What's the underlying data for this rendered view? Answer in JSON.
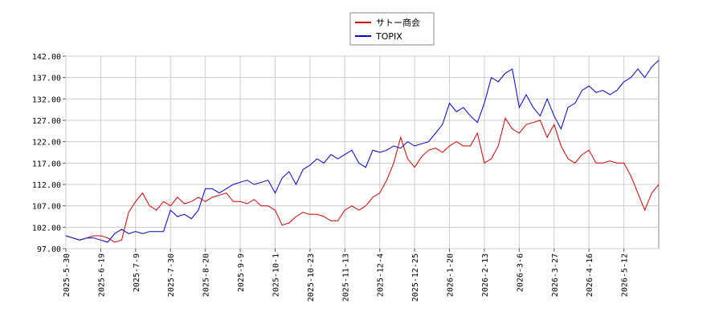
{
  "chart_data": {
    "type": "line",
    "x": [
      "2025-5-30",
      null,
      null,
      null,
      null,
      "2025-6-19",
      null,
      null,
      null,
      null,
      "2025-7-9",
      null,
      null,
      null,
      null,
      "2025-7-30",
      null,
      null,
      null,
      null,
      "2025-8-20",
      null,
      null,
      null,
      null,
      "2025-9-9",
      null,
      null,
      null,
      null,
      "2025-10-1",
      null,
      null,
      null,
      null,
      "2025-10-23",
      null,
      null,
      null,
      null,
      "2025-11-13",
      null,
      null,
      null,
      null,
      "2025-12-4",
      null,
      null,
      null,
      null,
      "2025-12-25",
      null,
      null,
      null,
      null,
      "2026-1-20",
      null,
      null,
      null,
      null,
      "2026-2-13",
      null,
      null,
      null,
      null,
      "2026-3-6",
      null,
      null,
      null,
      null,
      "2026-3-27",
      null,
      null,
      null,
      null,
      "2026-4-16",
      null,
      null,
      null,
      null,
      "2026-5-12",
      null,
      null,
      null,
      null,
      null
    ],
    "series": [
      {
        "name": "サトー商会",
        "color": "#cc0000",
        "values": [
          100,
          99.5,
          99,
          99.5,
          100,
          100,
          99.5,
          98.5,
          99,
          105.5,
          108,
          110,
          107,
          106,
          108,
          107,
          109,
          107.5,
          108,
          109,
          108,
          109,
          109.5,
          110,
          108,
          108,
          107.5,
          108.5,
          107,
          107,
          106,
          102.5,
          103,
          104.5,
          105.5,
          105,
          105,
          104.5,
          103.5,
          103.5,
          106,
          107,
          106,
          107,
          109,
          110,
          113,
          117,
          123,
          118,
          116,
          118.5,
          120,
          120.5,
          119.5,
          121,
          122,
          121,
          121,
          124,
          117,
          118,
          121,
          127.5,
          125,
          124,
          126,
          126.5,
          127,
          123,
          126,
          121,
          118,
          117,
          119,
          120,
          117,
          117,
          117.5,
          117,
          117,
          114,
          110,
          106,
          110,
          112
        ]
      },
      {
        "name": "TOPIX",
        "color": "#0000cc",
        "values": [
          100,
          99.5,
          99,
          99.5,
          99.5,
          99,
          98.5,
          100.5,
          101.5,
          100.5,
          101,
          100.5,
          101,
          101,
          101,
          106,
          104.5,
          105,
          104,
          106,
          111,
          111,
          110,
          111,
          112,
          112.5,
          113,
          112,
          112.5,
          113,
          110,
          113.5,
          115,
          112,
          115.5,
          116.5,
          118,
          117,
          119,
          118,
          119,
          120,
          117,
          116,
          120,
          119.5,
          120,
          121,
          120.5,
          122,
          121,
          121.5,
          122,
          124,
          126,
          131,
          129,
          130,
          128,
          126.5,
          131,
          137,
          136,
          138,
          139,
          130,
          133,
          130,
          128,
          132,
          128,
          125,
          130,
          131,
          134,
          135,
          133.5,
          134,
          133,
          134,
          136,
          137,
          139,
          137,
          139.5,
          141
        ]
      }
    ],
    "ylim": [
      97,
      142
    ],
    "yticks": [
      {
        "value": 97,
        "label": "97.00"
      },
      {
        "value": 102,
        "label": "102.00"
      },
      {
        "value": 107,
        "label": "107.00"
      },
      {
        "value": 112,
        "label": "112.00"
      },
      {
        "value": 117,
        "label": "117.00"
      },
      {
        "value": 122,
        "label": "122.00"
      },
      {
        "value": 127,
        "label": "127.00"
      },
      {
        "value": 132,
        "label": "132.00"
      },
      {
        "value": 137,
        "label": "137.00"
      },
      {
        "value": 142,
        "label": "142.00"
      }
    ],
    "grid": true,
    "legend": "top"
  }
}
